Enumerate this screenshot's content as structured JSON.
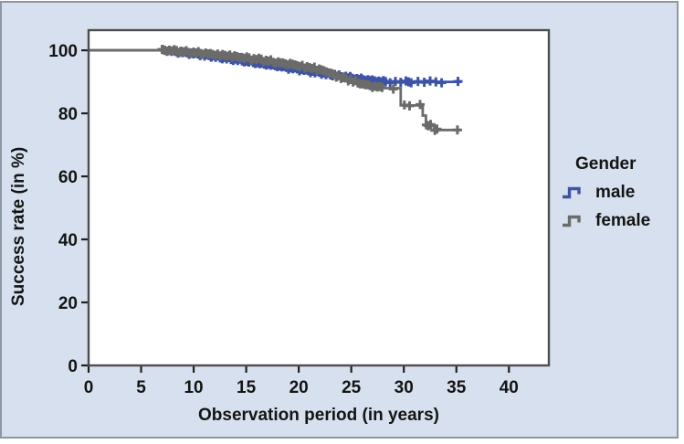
{
  "figure": {
    "background": "#d7e0ee",
    "outer_border": "#8d97a3",
    "plot_background": "#ffffff",
    "frame_color": "#4d4d4d",
    "tick_color": "#1f1f1f",
    "text_color": "#141414"
  },
  "chart_data": {
    "type": "line",
    "subtype": "kaplan-meier-step",
    "title": "",
    "xlabel": "Observation period (in years)",
    "ylabel": "Success rate (in %)",
    "x_ticks": [
      0,
      5,
      10,
      15,
      20,
      25,
      30,
      35,
      40
    ],
    "y_ticks": [
      0,
      20,
      40,
      60,
      80,
      100
    ],
    "xlim": [
      0,
      43.8
    ],
    "ylim": [
      0,
      106.4
    ],
    "grid": false,
    "legend_title": "Gender",
    "legend_position": "right",
    "series": [
      {
        "name": "male",
        "color": "#3c53a6",
        "steps": [
          [
            0,
            100
          ],
          [
            7.5,
            99.8
          ],
          [
            8,
            99.6
          ],
          [
            8.5,
            99.4
          ],
          [
            9,
            99.2
          ],
          [
            9.5,
            99.0
          ],
          [
            10,
            98.8
          ],
          [
            10.5,
            98.6
          ],
          [
            11,
            98.3
          ],
          [
            11.5,
            98.1
          ],
          [
            12,
            97.9
          ],
          [
            12.5,
            97.6
          ],
          [
            13,
            97.4
          ],
          [
            13.5,
            97.1
          ],
          [
            14,
            96.9
          ],
          [
            14.5,
            96.6
          ],
          [
            15,
            96.4
          ],
          [
            15.5,
            96.1
          ],
          [
            16,
            95.9
          ],
          [
            16.5,
            95.6
          ],
          [
            17,
            95.4
          ],
          [
            17.5,
            95.1
          ],
          [
            18,
            94.9
          ],
          [
            18.5,
            94.6
          ],
          [
            19,
            94.3
          ],
          [
            19.5,
            94.1
          ],
          [
            20,
            93.8
          ],
          [
            20.5,
            93.5
          ],
          [
            21,
            93.2
          ],
          [
            21.5,
            93.0
          ],
          [
            22,
            92.7
          ],
          [
            22.5,
            92.4
          ],
          [
            23,
            92.2
          ],
          [
            23.5,
            91.9
          ],
          [
            24,
            91.6
          ],
          [
            24.5,
            91.4
          ],
          [
            25,
            91.1
          ],
          [
            25.5,
            90.9
          ],
          [
            26,
            90.7
          ],
          [
            26.5,
            90.5
          ],
          [
            27,
            90.3
          ],
          [
            27.5,
            90.1
          ],
          [
            28.3,
            90.0
          ]
        ],
        "end_x": 35.45,
        "censor_band": {
          "from": 7.05,
          "to": 28.35,
          "step": 0.21
        },
        "censor_ticks": [
          28.7,
          29.2,
          29.7,
          30.2,
          30.45,
          30.7,
          31.35,
          31.95,
          32.5,
          33.05,
          33.6,
          35.15
        ]
      },
      {
        "name": "female",
        "color": "#6b6b6b",
        "steps": [
          [
            0,
            100
          ],
          [
            7.5,
            99.9
          ],
          [
            8.5,
            99.6
          ],
          [
            9.5,
            99.3
          ],
          [
            10.5,
            99.0
          ],
          [
            11.5,
            98.7
          ],
          [
            12.5,
            98.4
          ],
          [
            13.5,
            98.0
          ],
          [
            14.5,
            97.6
          ],
          [
            15.5,
            97.2
          ],
          [
            16.5,
            96.7
          ],
          [
            17.5,
            96.2
          ],
          [
            18.5,
            95.7
          ],
          [
            19.5,
            95.1
          ],
          [
            20.5,
            94.5
          ],
          [
            21.5,
            93.8
          ],
          [
            22.5,
            93.0
          ],
          [
            23,
            92.4
          ],
          [
            23.5,
            91.8
          ],
          [
            24,
            91.2
          ],
          [
            24.5,
            90.6
          ],
          [
            25,
            90.1
          ],
          [
            25.5,
            89.6
          ],
          [
            26,
            89.2
          ],
          [
            26.5,
            88.8
          ],
          [
            27,
            88.5
          ],
          [
            27.5,
            88.2
          ],
          [
            28,
            88.0
          ],
          [
            29.7,
            82.5
          ],
          [
            31.8,
            79.3
          ],
          [
            32.1,
            76.3
          ],
          [
            32.9,
            74.7
          ]
        ],
        "end_x": 35.35,
        "censor_ticks_note": "dense overlapping censor marks from ~7 to ~28 years, then discrete marks on the lower tail",
        "censor_band": {
          "from": 7.0,
          "to": 28.05,
          "step": 0.23
        },
        "censor_ticks": [
          29.0,
          30.05,
          30.55,
          31.55,
          32.15,
          32.35,
          32.55,
          32.95,
          33.15,
          35.1
        ]
      }
    ]
  }
}
